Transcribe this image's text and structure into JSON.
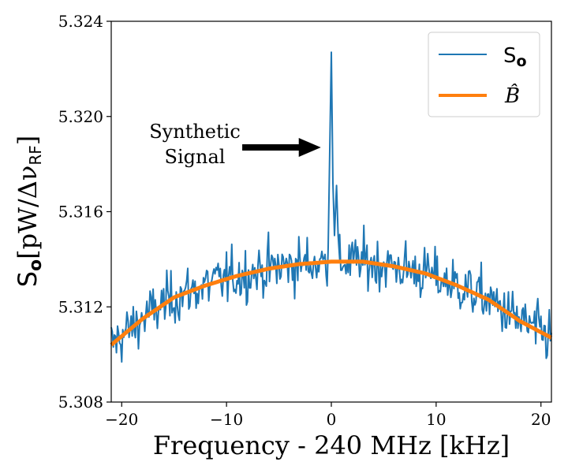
{
  "chart_data": {
    "type": "line",
    "xlabel": "Frequency - 240 MHz [kHz]",
    "ylabel": {
      "main": "S",
      "sub": "o",
      "unit_prefix": "[pW/Δν",
      "unit_sub": "RF",
      "unit_suffix": "]"
    },
    "xlim": [
      -21,
      21
    ],
    "ylim": [
      5.308,
      5.324
    ],
    "xticks": [
      -20,
      -10,
      0,
      10,
      20
    ],
    "xtick_labels": [
      "−20",
      "−10",
      "0",
      "10",
      "20"
    ],
    "yticks": [
      5.308,
      5.312,
      5.316,
      5.32,
      5.324
    ],
    "ytick_labels": [
      "5.308",
      "5.312",
      "5.316",
      "5.320",
      "5.324"
    ],
    "series": [
      {
        "name": "S_o",
        "color": "#1f77b4",
        "style": "noisy",
        "baseline_description": "follows fitted background B-hat with noise amplitude ~0.0012",
        "spike": {
          "x": [
            -0.3,
            0.0,
            0.15,
            0.3,
            0.5,
            0.65,
            0.8
          ],
          "y": [
            5.3145,
            5.3227,
            5.3172,
            5.315,
            5.3171,
            5.315,
            5.314
          ]
        }
      },
      {
        "name": "B-hat",
        "color": "#ff7f0e",
        "x": [
          -21,
          -18,
          -15,
          -12,
          -9,
          -6,
          -3,
          0,
          3,
          6,
          9,
          12,
          15,
          18,
          21
        ],
        "values": [
          5.3104,
          5.3115,
          5.3124,
          5.3129,
          5.3133,
          5.3136,
          5.3138,
          5.3139,
          5.3139,
          5.3137,
          5.3134,
          5.3129,
          5.3123,
          5.3114,
          5.3107
        ]
      }
    ],
    "legend": {
      "position": "top-right",
      "entries": [
        {
          "label_main": "S",
          "label_sub": "o",
          "color": "#1f77b4"
        },
        {
          "label": "B̂",
          "color": "#ff7f0e"
        }
      ]
    },
    "annotation": {
      "line1": "Synthetic",
      "line2": "Signal",
      "arrow_from_x": -8.5,
      "arrow_to_x": -1.0,
      "arrow_y": 5.3187
    }
  }
}
